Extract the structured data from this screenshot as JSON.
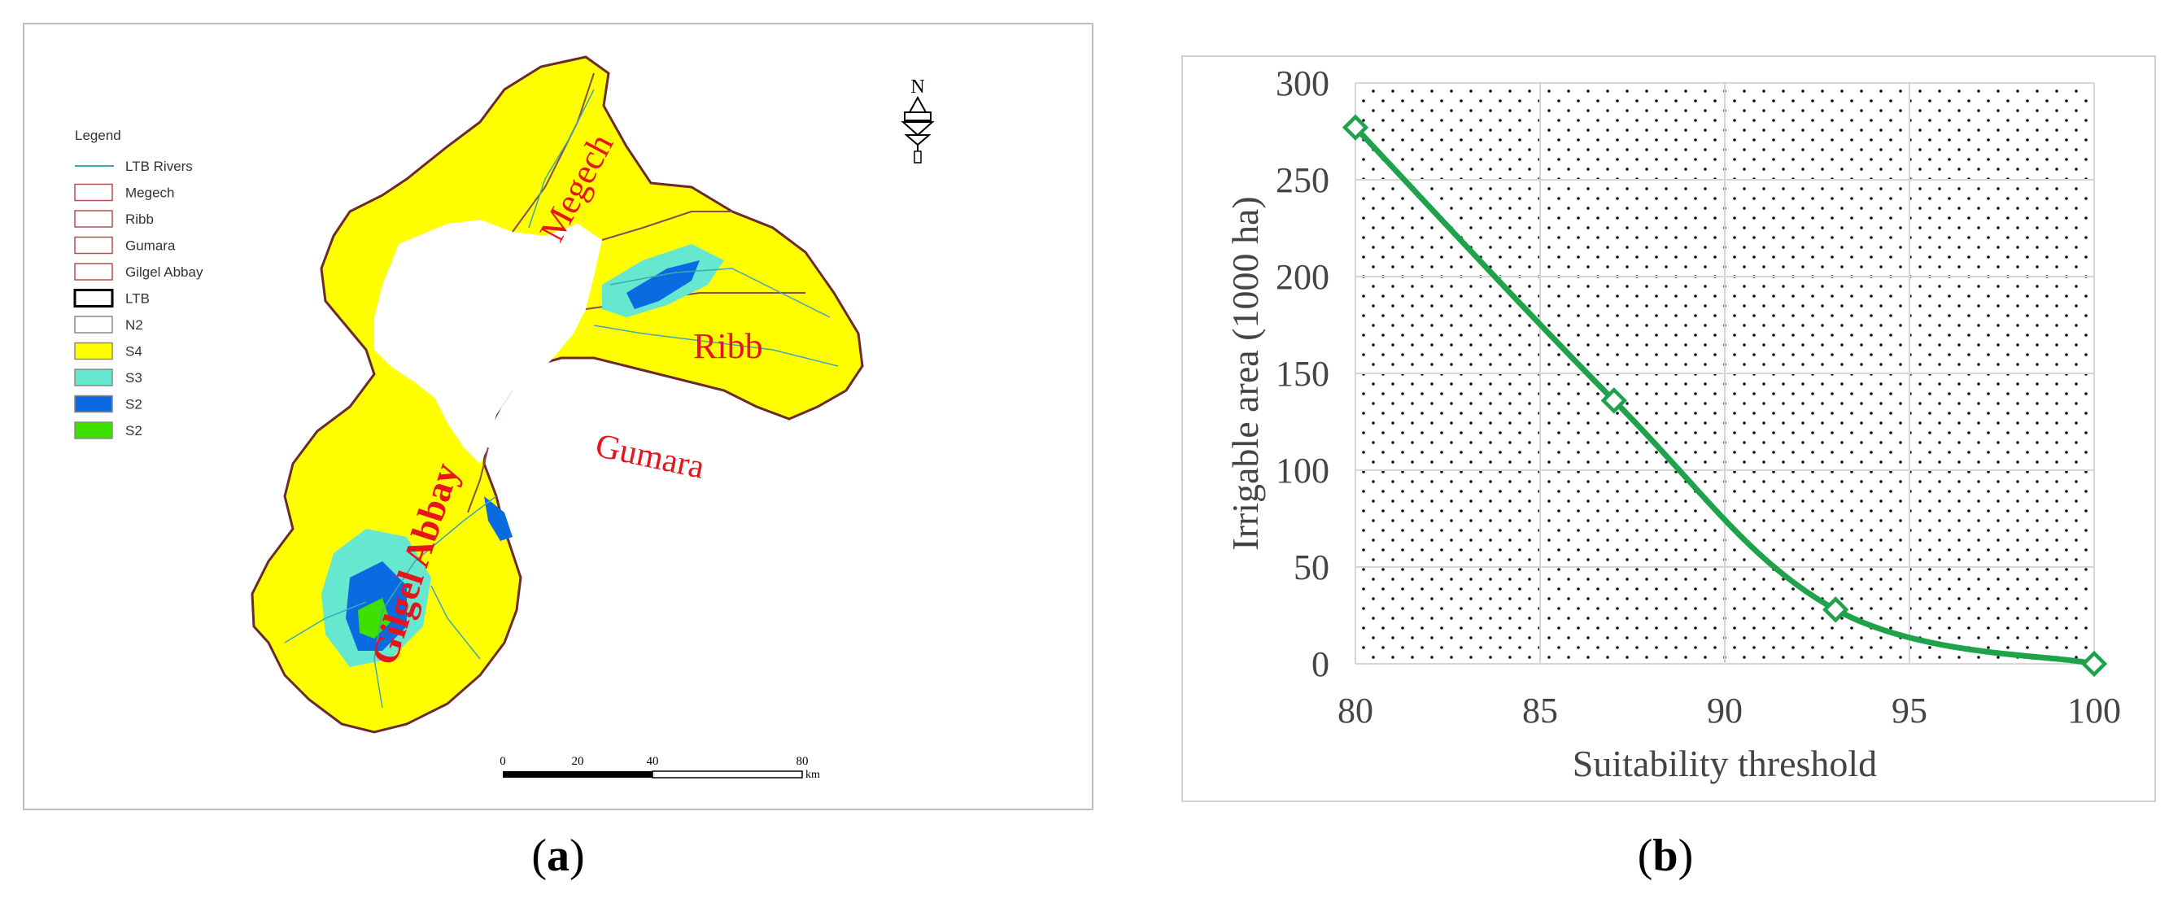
{
  "captions": {
    "a_prefix": "(",
    "a_letter": "a",
    "a_suffix": ")",
    "b_prefix": "(",
    "b_letter": "b",
    "b_suffix": ")"
  },
  "map": {
    "legend_title": "Legend",
    "legend_items": [
      {
        "label": "LTB Rivers",
        "kind": "line",
        "color": "#3fa7b3"
      },
      {
        "label": "Megech",
        "kind": "box",
        "color": "#ffffff",
        "stroke": "#b05050"
      },
      {
        "label": "Ribb",
        "kind": "box",
        "color": "#ffffff",
        "stroke": "#b05050"
      },
      {
        "label": "Gumara",
        "kind": "box",
        "color": "#ffffff",
        "stroke": "#b05050"
      },
      {
        "label": "Gilgel Abbay",
        "kind": "box",
        "color": "#ffffff",
        "stroke": "#b05050"
      },
      {
        "label": "LTB",
        "kind": "box",
        "color": "#ffffff",
        "stroke": "#000000"
      },
      {
        "label": "N2",
        "kind": "box",
        "color": "#ffffff",
        "stroke": "#888888"
      },
      {
        "label": "S4",
        "kind": "box",
        "color": "#ffff00",
        "stroke": "#888888"
      },
      {
        "label": "S3",
        "kind": "box",
        "color": "#66e8d0",
        "stroke": "#888888"
      },
      {
        "label": "S2",
        "kind": "box",
        "color": "#0a6ae0",
        "stroke": "#888888"
      },
      {
        "label": "S2",
        "kind": "box",
        "color": "#3ee000",
        "stroke": "#888888"
      }
    ],
    "region_labels": [
      "Megech",
      "Ribb",
      "Gumara",
      "Gilgel Abbay"
    ],
    "north_label": "N",
    "scale_ticks": [
      "0",
      "20",
      "40",
      "80"
    ],
    "scale_unit": "km",
    "colors": {
      "s4": "#ffff00",
      "s3": "#66e8d0",
      "s2": "#0a6ae0",
      "s1": "#3ee000",
      "lake": "#ffffff",
      "boundary": "#6b2b2b",
      "label": "#e8141c"
    }
  },
  "chart_data": {
    "type": "line",
    "x": [
      80,
      87,
      93,
      100
    ],
    "values": [
      277,
      136,
      28,
      0
    ],
    "xlabel": "Suitability threshold",
    "ylabel": "Irrigable area (1000 ha)",
    "xlim": [
      80,
      100
    ],
    "ylim": [
      0,
      300
    ],
    "xticks": [
      80,
      85,
      90,
      95,
      100
    ],
    "yticks": [
      0,
      50,
      100,
      150,
      200,
      250,
      300
    ],
    "grid": true,
    "line_color": "#1fa34a",
    "marker": "open-diamond",
    "plot_fill": "dotted"
  }
}
